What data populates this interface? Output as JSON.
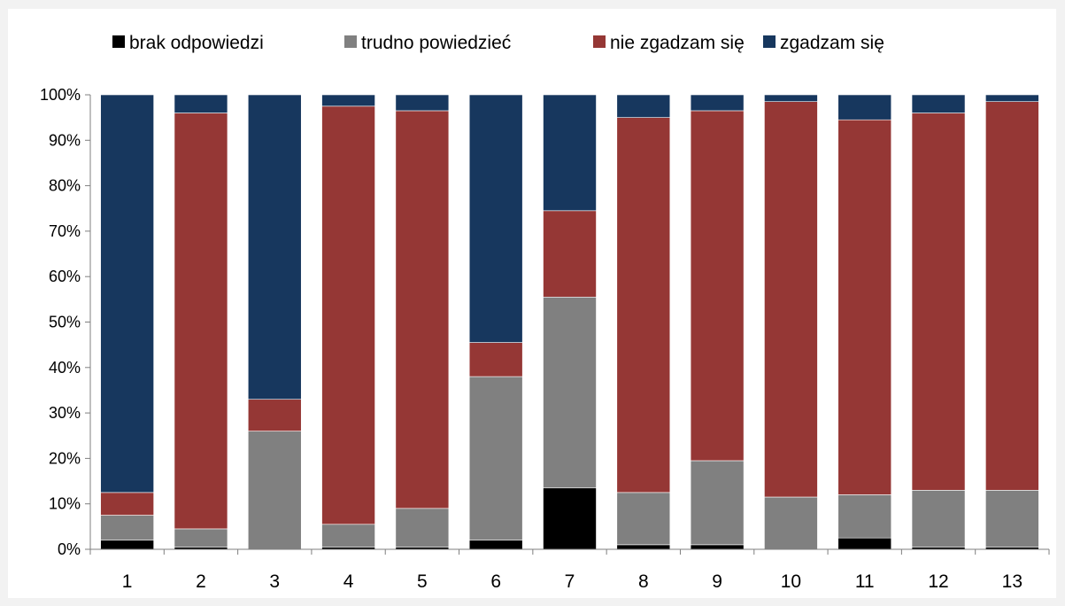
{
  "chart_data": {
    "type": "bar",
    "stacked": true,
    "percent_stacked": true,
    "categories": [
      "1",
      "2",
      "3",
      "4",
      "5",
      "6",
      "7",
      "8",
      "9",
      "10",
      "11",
      "12",
      "13"
    ],
    "series": [
      {
        "name": "brak odpowiedzi",
        "color": "#000000",
        "values": [
          2,
          0.5,
          0,
          0.5,
          0.5,
          2,
          13.5,
          1,
          1,
          0,
          2.5,
          0.5,
          0.5
        ]
      },
      {
        "name": "trudno powiedzieć",
        "color": "#808080",
        "values": [
          5.5,
          4,
          26,
          5,
          8.5,
          36,
          42,
          11.5,
          18.5,
          11.5,
          9.5,
          12.5,
          12.5
        ]
      },
      {
        "name": "nie zgadzam się",
        "color": "#953735",
        "values": [
          5,
          91.5,
          7,
          92,
          87.5,
          7.5,
          19,
          82.5,
          77,
          87,
          82.5,
          83,
          85.5
        ]
      },
      {
        "name": "zgadzam się",
        "color": "#17375e",
        "values": [
          87.5,
          4,
          67,
          2.5,
          3.5,
          54.5,
          25.5,
          5,
          3.5,
          1.5,
          5.5,
          4,
          1.5
        ]
      }
    ],
    "y_ticks": [
      "0%",
      "10%",
      "20%",
      "30%",
      "40%",
      "50%",
      "60%",
      "70%",
      "80%",
      "90%",
      "100%"
    ],
    "ylim": [
      0,
      100
    ],
    "legend_position": "top",
    "grid": false
  }
}
